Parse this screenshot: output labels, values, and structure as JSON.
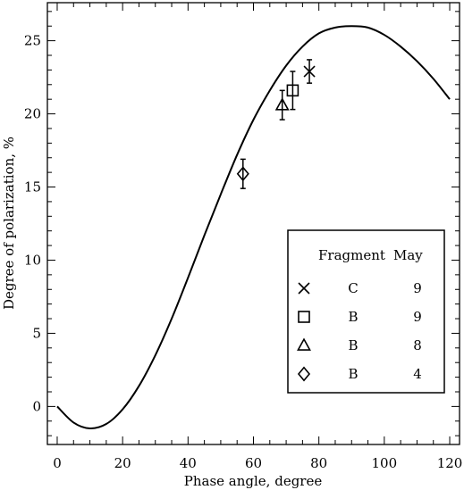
{
  "chart_data": {
    "type": "scatter",
    "xlabel": "Phase angle, degree",
    "ylabel": "Degree of polarization, %",
    "xlim": [
      -3,
      123
    ],
    "ylim": [
      -2.6,
      27.6
    ],
    "xticks": [
      0,
      20,
      40,
      60,
      80,
      100,
      120
    ],
    "yticks": [
      0,
      5,
      10,
      15,
      20,
      25
    ],
    "series": [
      {
        "fragment": "C",
        "may": "9",
        "marker": "cross",
        "x": 77.1,
        "y": 22.9,
        "yerr": 0.8
      },
      {
        "fragment": "B",
        "may": "9",
        "marker": "square",
        "x": 72.0,
        "y": 21.6,
        "yerr": 1.3
      },
      {
        "fragment": "B",
        "may": "8",
        "marker": "triangle",
        "x": 68.8,
        "y": 20.6,
        "yerr": 1.0
      },
      {
        "fragment": "B",
        "may": "4",
        "marker": "diamond",
        "x": 56.8,
        "y": 15.9,
        "yerr": 1.0
      }
    ],
    "fit_curve": {
      "x": [
        0,
        5,
        10,
        15,
        20,
        25,
        30,
        35,
        40,
        45,
        50,
        55,
        60,
        65,
        70,
        75,
        80,
        85,
        90,
        95,
        100,
        105,
        110,
        115,
        120
      ],
      "y": [
        0,
        -1.1,
        -1.5,
        -1.2,
        -0.2,
        1.4,
        3.5,
        6.0,
        8.8,
        11.7,
        14.5,
        17.2,
        19.6,
        21.6,
        23.3,
        24.6,
        25.5,
        25.9,
        26.0,
        25.9,
        25.4,
        24.6,
        23.6,
        22.4,
        21.0
      ]
    },
    "legend": {
      "position": "lower-right",
      "headers": [
        "Fragment",
        "May"
      ]
    }
  }
}
